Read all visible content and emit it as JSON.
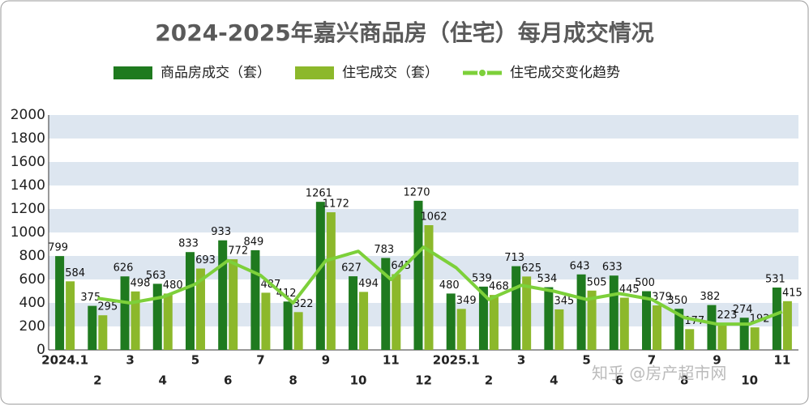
{
  "chart_data": {
    "type": "bar",
    "title": "2024-2025年嘉兴商品房（住宅）每月成交情况",
    "categories": [
      "2024.1",
      "2",
      "3",
      "4",
      "5",
      "6",
      "7",
      "8",
      "9",
      "10",
      "11",
      "12",
      "2025.1",
      "2",
      "3",
      "4",
      "5",
      "6",
      "7",
      "8",
      "9",
      "10",
      "11"
    ],
    "series": [
      {
        "name": "商品房成交（套）",
        "color": "#1f7a1f",
        "values": [
          799,
          375,
          626,
          563,
          833,
          933,
          849,
          412,
          1261,
          627,
          783,
          1270,
          480,
          539,
          713,
          534,
          643,
          633,
          500,
          350,
          382,
          274,
          531
        ]
      },
      {
        "name": "住宅成交（套）",
        "color": "#8cb82b",
        "values": [
          584,
          295,
          498,
          480,
          693,
          772,
          487,
          322,
          1172,
          494,
          645,
          1062,
          349,
          468,
          625,
          345,
          505,
          445,
          379,
          177,
          223,
          192,
          415
        ]
      },
      {
        "name": "住宅成交变化趋势",
        "color": "#7dd03a",
        "type": "line",
        "values": [
          null,
          440,
          400,
          450,
          560,
          760,
          635,
          400,
          760,
          840,
          600,
          875,
          700,
          430,
          550,
          500,
          430,
          480,
          430,
          275,
          220,
          220,
          325
        ]
      }
    ],
    "ylim": [
      0,
      2000
    ],
    "yticks": [
      0,
      200,
      400,
      600,
      800,
      1000,
      1200,
      1400,
      1600,
      1800,
      2000
    ],
    "grid": "bands",
    "legend": "top",
    "watermark": "知乎 @房产超市网"
  }
}
